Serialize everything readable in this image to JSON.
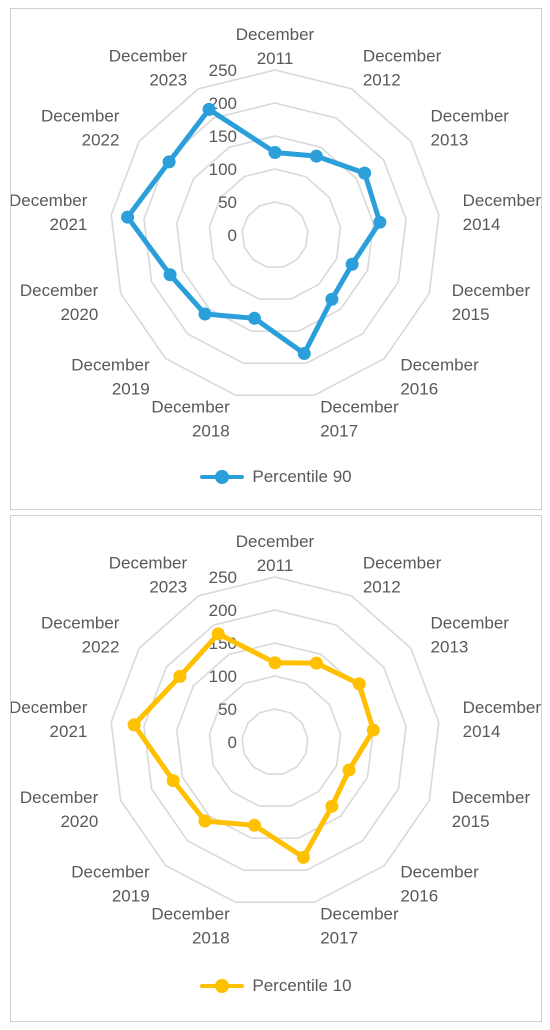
{
  "chart_data": [
    {
      "type": "radar",
      "categories": [
        "December 2011",
        "December 2012",
        "December 2013",
        "December 2014",
        "December 2015",
        "December 2016",
        "December 2017",
        "December 2018",
        "December 2019",
        "December 2020",
        "December 2021",
        "December 2022",
        "December 2023"
      ],
      "series": [
        {
          "name": "Percentile 90",
          "values": [
            125,
            135,
            165,
            160,
            125,
            130,
            185,
            130,
            160,
            170,
            225,
            195,
            215
          ],
          "color": "#2b9fd9"
        }
      ],
      "rlim": [
        0,
        250
      ],
      "ticks": [
        0,
        50,
        100,
        150,
        200,
        250
      ],
      "grid": true,
      "legend_position": "bottom"
    },
    {
      "type": "radar",
      "categories": [
        "December 2011",
        "December 2012",
        "December 2013",
        "December 2014",
        "December 2015",
        "December 2016",
        "December 2017",
        "December 2018",
        "December 2019",
        "December 2020",
        "December 2021",
        "December 2022",
        "December 2023"
      ],
      "series": [
        {
          "name": "Percentile 10",
          "values": [
            120,
            135,
            155,
            150,
            120,
            130,
            180,
            130,
            160,
            165,
            215,
            175,
            185
          ],
          "color": "#ffc000"
        }
      ],
      "rlim": [
        0,
        250
      ],
      "ticks": [
        0,
        50,
        100,
        150,
        200,
        250
      ],
      "grid": true,
      "legend_position": "bottom"
    }
  ]
}
